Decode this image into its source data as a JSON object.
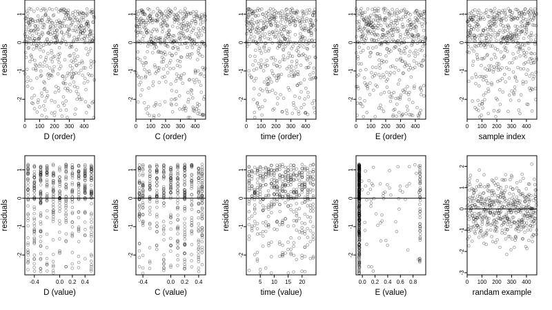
{
  "chart_data": [
    {
      "type": "scatter",
      "xlabel": "D (order)",
      "ylabel": "residuals",
      "xlim": [
        0,
        470
      ],
      "ylim": [
        -2.7,
        1.5
      ],
      "xticks": [
        0,
        100,
        200,
        300,
        400
      ],
      "xtick_labels": [
        "0",
        "100",
        "200",
        "300",
        "400"
      ],
      "yticks": [
        -2,
        -1,
        0,
        1
      ],
      "ytick_labels": [
        "-2",
        "-1",
        "0",
        "1"
      ],
      "hline": 0,
      "n_points": 470,
      "x_kind": "order",
      "generator_seed": 11
    },
    {
      "type": "scatter",
      "xlabel": "C (order)",
      "ylabel": "residuals",
      "xlim": [
        0,
        470
      ],
      "ylim": [
        -2.7,
        1.5
      ],
      "xticks": [
        0,
        100,
        200,
        300,
        400
      ],
      "xtick_labels": [
        "0",
        "100",
        "200",
        "300",
        "400"
      ],
      "yticks": [
        -2,
        -1,
        0,
        1
      ],
      "ytick_labels": [
        "-2",
        "-1",
        "0",
        "1"
      ],
      "hline": 0,
      "n_points": 470,
      "x_kind": "order",
      "generator_seed": 23
    },
    {
      "type": "scatter",
      "xlabel": "time (order)",
      "ylabel": "residuals",
      "xlim": [
        0,
        470
      ],
      "ylim": [
        -2.7,
        1.5
      ],
      "xticks": [
        0,
        100,
        200,
        300,
        400
      ],
      "xtick_labels": [
        "0",
        "100",
        "200",
        "300",
        "400"
      ],
      "yticks": [
        -2,
        -1,
        0,
        1
      ],
      "ytick_labels": [
        "-2",
        "-1",
        "0",
        "1"
      ],
      "hline": 0,
      "n_points": 470,
      "x_kind": "order",
      "generator_seed": 37
    },
    {
      "type": "scatter",
      "xlabel": "E (order)",
      "ylabel": "residuals",
      "xlim": [
        0,
        470
      ],
      "ylim": [
        -2.7,
        1.5
      ],
      "xticks": [
        0,
        100,
        200,
        300,
        400
      ],
      "xtick_labels": [
        "0",
        "100",
        "200",
        "300",
        "400"
      ],
      "yticks": [
        -2,
        -1,
        0,
        1
      ],
      "ytick_labels": [
        "-2",
        "-1",
        "0",
        "1"
      ],
      "hline": 0,
      "n_points": 470,
      "x_kind": "order",
      "generator_seed": 41
    },
    {
      "type": "scatter",
      "xlabel": "sample index",
      "ylabel": "residuals",
      "xlim": [
        0,
        470
      ],
      "ylim": [
        -2.7,
        1.5
      ],
      "xticks": [
        0,
        100,
        200,
        300,
        400
      ],
      "xtick_labels": [
        "0",
        "100",
        "200",
        "300",
        "400"
      ],
      "yticks": [
        -2,
        -1,
        0,
        1
      ],
      "ytick_labels": [
        "-2",
        "-1",
        "0",
        "1"
      ],
      "hline": 0,
      "n_points": 470,
      "x_kind": "order",
      "generator_seed": 53
    },
    {
      "type": "scatter",
      "xlabel": "D (value)",
      "ylabel": "residuals",
      "xlim": [
        -0.55,
        0.55
      ],
      "ylim": [
        -2.7,
        1.5
      ],
      "xticks": [
        -0.4,
        0,
        0.2,
        0.4
      ],
      "xtick_labels": [
        "-0.4",
        "0.0",
        "0.2",
        "0.4"
      ],
      "yticks": [
        -2,
        -1,
        0,
        1
      ],
      "ytick_labels": [
        "-2",
        "-1",
        "0",
        "1"
      ],
      "hline": 0,
      "n_points": 470,
      "x_kind": "discrete",
      "x_levels": [
        -0.5,
        -0.4,
        -0.3,
        -0.2,
        -0.1,
        0.0,
        0.1,
        0.2,
        0.3,
        0.4,
        0.5
      ],
      "generator_seed": 67
    },
    {
      "type": "scatter",
      "xlabel": "C (value)",
      "ylabel": "residuals",
      "xlim": [
        -0.5,
        0.5
      ],
      "ylim": [
        -2.7,
        1.5
      ],
      "xticks": [
        -0.4,
        0,
        0.2,
        0.4
      ],
      "xtick_labels": [
        "-0.4",
        "0.0",
        "0.2",
        "0.4"
      ],
      "yticks": [
        -2,
        -1,
        0,
        1
      ],
      "ytick_labels": [
        "-2",
        "-1",
        "0",
        "1"
      ],
      "hline": 0,
      "n_points": 470,
      "x_kind": "discrete",
      "x_levels": [
        -0.45,
        -0.4,
        -0.3,
        -0.2,
        -0.1,
        0.0,
        0.1,
        0.2,
        0.3,
        0.4,
        0.45
      ],
      "generator_seed": 71
    },
    {
      "type": "scatter",
      "xlabel": "time (value)",
      "ylabel": "residuals",
      "xlim": [
        0,
        25
      ],
      "ylim": [
        -2.7,
        1.5
      ],
      "xticks": [
        5,
        10,
        15,
        20
      ],
      "xtick_labels": [
        "5",
        "10",
        "15",
        "20"
      ],
      "yticks": [
        -2,
        -1,
        0,
        1
      ],
      "ytick_labels": [
        "-2",
        "-1",
        "0",
        "1"
      ],
      "hline": 0,
      "n_points": 470,
      "x_kind": "discrete",
      "x_levels": [
        1,
        2,
        3,
        4,
        5,
        6,
        7,
        8,
        9,
        10,
        11,
        12,
        13,
        14,
        15,
        16,
        17,
        18,
        19,
        20,
        21,
        22,
        23,
        24
      ],
      "generator_seed": 83
    },
    {
      "type": "scatter",
      "xlabel": "E (value)",
      "ylabel": "residuals",
      "xlim": [
        -0.1,
        1.0
      ],
      "ylim": [
        -2.7,
        1.5
      ],
      "xticks": [
        0,
        0.2,
        0.4,
        0.6,
        0.8
      ],
      "xtick_labels": [
        "0.0",
        "0.2",
        "0.4",
        "0.6",
        "0.8"
      ],
      "yticks": [
        -2,
        -1,
        0,
        1
      ],
      "ytick_labels": [
        "-2",
        "-1",
        "0",
        "1"
      ],
      "hline": 0,
      "n_points": 470,
      "x_kind": "clustered",
      "cluster_center": -0.05,
      "cluster_share": 0.82,
      "tail_cluster": 0.91,
      "generator_seed": 97
    },
    {
      "type": "scatter",
      "xlabel": "randam example",
      "ylabel": "residuals",
      "xlim": [
        0,
        470
      ],
      "ylim": [
        -3.1,
        2.5
      ],
      "xticks": [
        0,
        100,
        200,
        300,
        400
      ],
      "xtick_labels": [
        "0",
        "100",
        "200",
        "300",
        "400"
      ],
      "yticks": [
        -3,
        -2,
        -1,
        0,
        1,
        2
      ],
      "ytick_labels": [
        "-3",
        "-2",
        "-1",
        "0",
        "1",
        "2"
      ],
      "hline": 0,
      "n_points": 470,
      "x_kind": "random",
      "generator_seed": 101
    }
  ]
}
